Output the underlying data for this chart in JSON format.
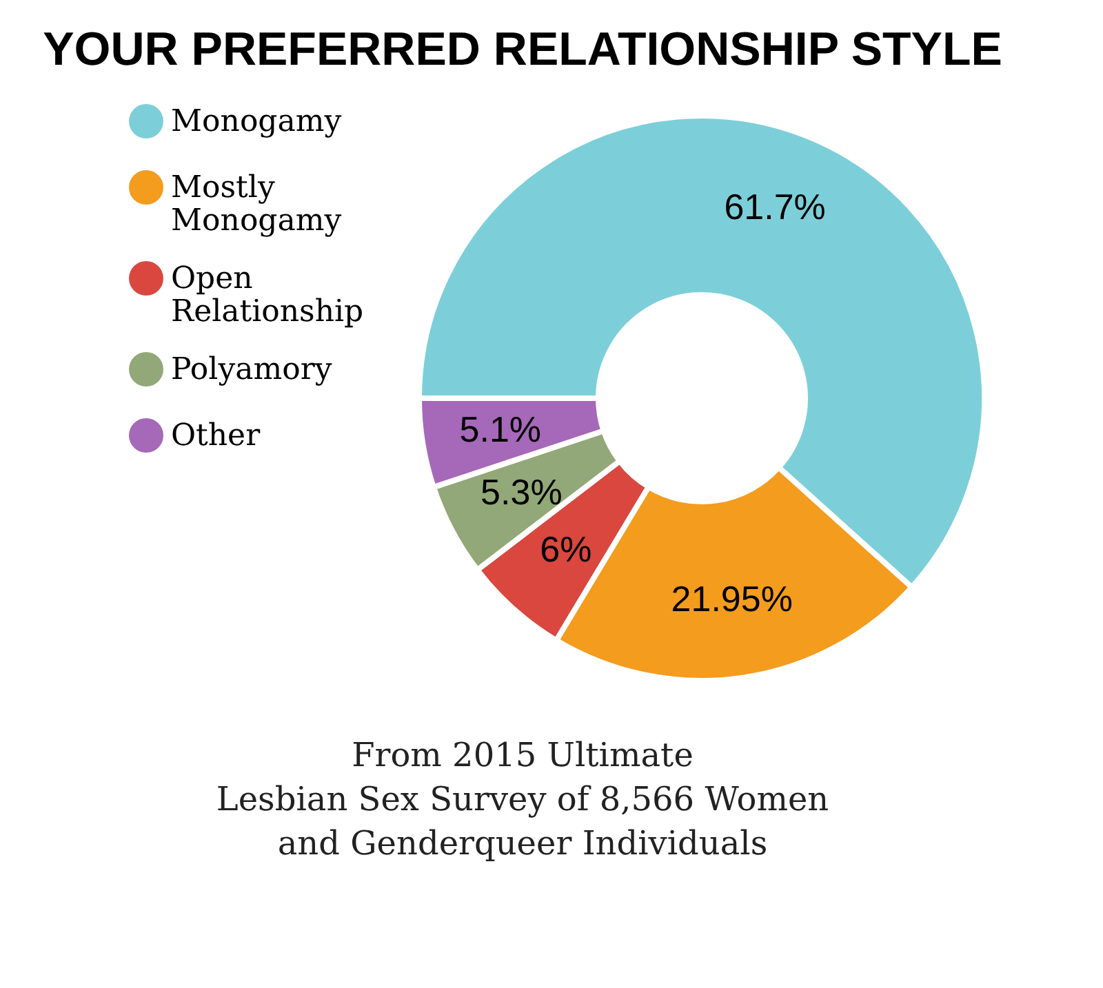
{
  "chart_data": {
    "type": "donut",
    "title": "YOUR PREFERRED RELATIONSHIP STYLE",
    "categories": [
      "Monogamy",
      "Mostly Monogamy",
      "Open Relationship",
      "Polyamory",
      "Other"
    ],
    "values": [
      61.7,
      21.95,
      6,
      5.3,
      5.1
    ],
    "value_labels": [
      "61.7%",
      "21.95%",
      "6%",
      "5.3%",
      "5.1%"
    ],
    "colors": [
      "#7ccfd9",
      "#f39c1e",
      "#d9473f",
      "#93a878",
      "#a668b8"
    ],
    "legend": "left",
    "annotations": [
      "From 2015 Ultimate",
      "Lesbian Sex Survey of 8,566 Women",
      "and Genderqueer Individuals"
    ]
  }
}
